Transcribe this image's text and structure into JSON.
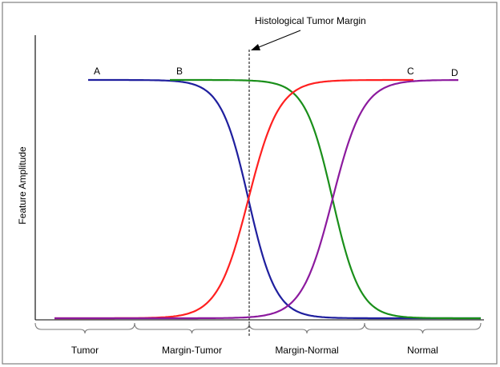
{
  "chart_data": {
    "type": "line",
    "title": "",
    "xlabel": "",
    "ylabel": "Feature Amplitude",
    "annotation": "Histological Tumor Margin",
    "x_ticks": [],
    "y_ticks": [],
    "grid": false,
    "legend": "none",
    "regions": [
      "Tumor",
      "Margin-Tumor",
      "Margin-Normal",
      "Normal"
    ],
    "series": [
      {
        "name": "A",
        "color": "#1f1f9e",
        "kind": "decreasing"
      },
      {
        "name": "B",
        "color": "#1a8f1a",
        "kind": "decreasing"
      },
      {
        "name": "C",
        "color": "#ff2020",
        "kind": "increasing"
      },
      {
        "name": "D",
        "color": "#8c1a9e",
        "kind": "increasing"
      }
    ]
  }
}
